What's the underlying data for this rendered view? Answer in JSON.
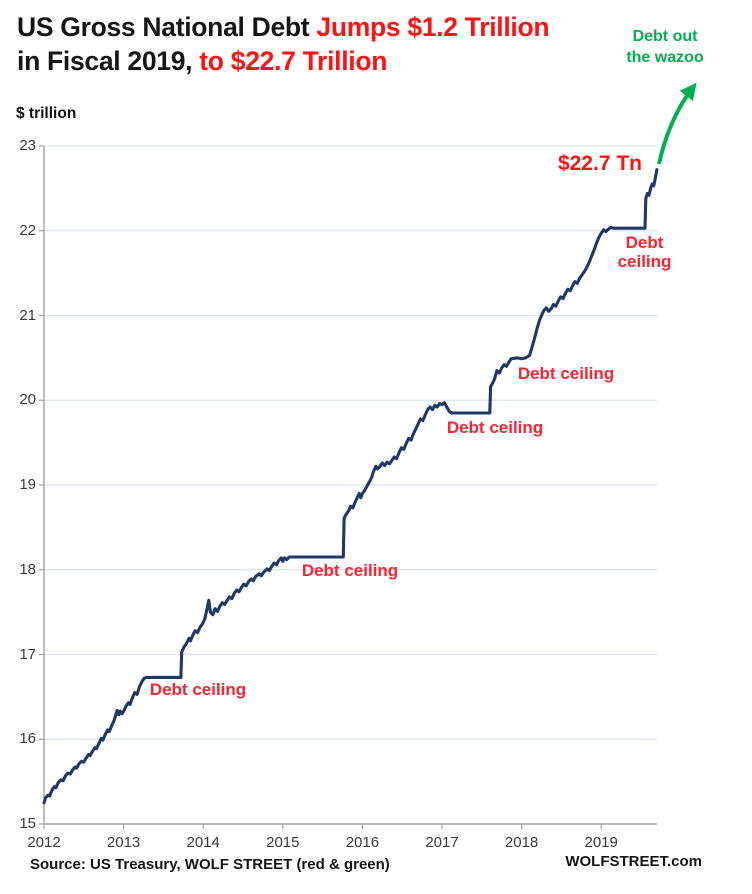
{
  "title": {
    "line1_black": "US Gross National Debt ",
    "line1_red": "Jumps $1.2 Trillion",
    "line2_black": "in Fiscal 2019, ",
    "line2_red": "to $22.7 Trillion"
  },
  "unit_label": "$ trillion",
  "annotations": {
    "wazoo_line1": "Debt out",
    "wazoo_line2": "the wazoo",
    "peak_label": "$22.7 Tn",
    "debt_ceiling_2013": "Debt ceiling",
    "debt_ceiling_2015": "Debt ceiling",
    "debt_ceiling_2017": "Debt ceiling",
    "debt_ceiling_2018": "Debt ceiling",
    "debt_ceiling_2019_line1": "Debt",
    "debt_ceiling_2019_line2": "ceiling"
  },
  "source": {
    "left": "Source: US Treasury, WOLF STREET (red & green)",
    "right": "WOLFSTREET.com"
  },
  "colors": {
    "line": "#1f3864",
    "grid": "#d9e2f2",
    "axis": "#a3a3a3",
    "red": "#ff2230",
    "title_red": "#ff1212",
    "green": "#00b050"
  },
  "chart_data": {
    "type": "line",
    "title": "US Gross National Debt Jumps $1.2 Trillion in Fiscal 2019, to $22.7 Trillion",
    "xlabel": "",
    "ylabel": "$ trillion",
    "xlim": [
      2012,
      2019.7
    ],
    "ylim": [
      15,
      23
    ],
    "grid": "horizontal",
    "legend": "none",
    "x_ticks": [
      2012,
      2013,
      2014,
      2015,
      2016,
      2017,
      2018,
      2019
    ],
    "y_ticks": [
      15,
      16,
      17,
      18,
      19,
      20,
      21,
      22,
      23
    ],
    "series": [
      {
        "name": "US gross national debt, $ trillion",
        "points": [
          [
            2012.0,
            15.25
          ],
          [
            2012.02,
            15.31
          ],
          [
            2012.05,
            15.34
          ],
          [
            2012.07,
            15.33
          ],
          [
            2012.1,
            15.4
          ],
          [
            2012.13,
            15.44
          ],
          [
            2012.15,
            15.43
          ],
          [
            2012.18,
            15.49
          ],
          [
            2012.21,
            15.52
          ],
          [
            2012.24,
            15.51
          ],
          [
            2012.27,
            15.57
          ],
          [
            2012.3,
            15.6
          ],
          [
            2012.33,
            15.59
          ],
          [
            2012.36,
            15.64
          ],
          [
            2012.39,
            15.67
          ],
          [
            2012.41,
            15.66
          ],
          [
            2012.44,
            15.71
          ],
          [
            2012.47,
            15.74
          ],
          [
            2012.5,
            15.73
          ],
          [
            2012.53,
            15.78
          ],
          [
            2012.56,
            15.82
          ],
          [
            2012.58,
            15.81
          ],
          [
            2012.61,
            15.86
          ],
          [
            2012.64,
            15.9
          ],
          [
            2012.66,
            15.89
          ],
          [
            2012.69,
            15.95
          ],
          [
            2012.72,
            16.01
          ],
          [
            2012.74,
            15.99
          ],
          [
            2012.77,
            16.06
          ],
          [
            2012.8,
            16.11
          ],
          [
            2012.82,
            16.09
          ],
          [
            2012.85,
            16.16
          ],
          [
            2012.88,
            16.22
          ],
          [
            2012.9,
            16.28
          ],
          [
            2012.92,
            16.34
          ],
          [
            2012.94,
            16.29
          ],
          [
            2012.96,
            16.33
          ],
          [
            2012.98,
            16.3
          ],
          [
            2013.0,
            16.33
          ],
          [
            2013.03,
            16.39
          ],
          [
            2013.06,
            16.43
          ],
          [
            2013.08,
            16.41
          ],
          [
            2013.11,
            16.49
          ],
          [
            2013.14,
            16.55
          ],
          [
            2013.17,
            16.53
          ],
          [
            2013.2,
            16.62
          ],
          [
            2013.23,
            16.68
          ],
          [
            2013.26,
            16.72
          ],
          [
            2013.29,
            16.73
          ],
          [
            2013.72,
            16.73
          ],
          [
            2013.73,
            17.03
          ],
          [
            2013.76,
            17.09
          ],
          [
            2013.79,
            17.13
          ],
          [
            2013.82,
            17.19
          ],
          [
            2013.84,
            17.16
          ],
          [
            2013.87,
            17.23
          ],
          [
            2013.9,
            17.28
          ],
          [
            2013.93,
            17.26
          ],
          [
            2013.96,
            17.32
          ],
          [
            2013.99,
            17.36
          ],
          [
            2014.02,
            17.42
          ],
          [
            2014.05,
            17.55
          ],
          [
            2014.07,
            17.64
          ],
          [
            2014.09,
            17.5
          ],
          [
            2014.12,
            17.47
          ],
          [
            2014.15,
            17.54
          ],
          [
            2014.18,
            17.51
          ],
          [
            2014.21,
            17.57
          ],
          [
            2014.24,
            17.61
          ],
          [
            2014.27,
            17.59
          ],
          [
            2014.3,
            17.64
          ],
          [
            2014.33,
            17.68
          ],
          [
            2014.36,
            17.66
          ],
          [
            2014.39,
            17.72
          ],
          [
            2014.42,
            17.76
          ],
          [
            2014.45,
            17.74
          ],
          [
            2014.48,
            17.79
          ],
          [
            2014.51,
            17.83
          ],
          [
            2014.54,
            17.81
          ],
          [
            2014.57,
            17.86
          ],
          [
            2014.6,
            17.89
          ],
          [
            2014.63,
            17.87
          ],
          [
            2014.66,
            17.92
          ],
          [
            2014.7,
            17.95
          ],
          [
            2014.73,
            17.93
          ],
          [
            2014.76,
            17.97
          ],
          [
            2014.8,
            18.01
          ],
          [
            2014.83,
            17.99
          ],
          [
            2014.86,
            18.04
          ],
          [
            2014.89,
            18.08
          ],
          [
            2014.92,
            18.06
          ],
          [
            2014.95,
            18.11
          ],
          [
            2014.98,
            18.14
          ],
          [
            2015.0,
            18.1
          ],
          [
            2015.02,
            18.14
          ],
          [
            2015.05,
            18.12
          ],
          [
            2015.08,
            18.15
          ],
          [
            2015.76,
            18.15
          ],
          [
            2015.77,
            18.61
          ],
          [
            2015.8,
            18.66
          ],
          [
            2015.83,
            18.7
          ],
          [
            2015.85,
            18.75
          ],
          [
            2015.88,
            18.73
          ],
          [
            2015.91,
            18.8
          ],
          [
            2015.94,
            18.86
          ],
          [
            2015.96,
            18.9
          ],
          [
            2015.98,
            18.85
          ],
          [
            2016.0,
            18.9
          ],
          [
            2016.03,
            18.94
          ],
          [
            2016.06,
            18.99
          ],
          [
            2016.09,
            19.04
          ],
          [
            2016.12,
            19.1
          ],
          [
            2016.14,
            19.16
          ],
          [
            2016.17,
            19.22
          ],
          [
            2016.19,
            19.19
          ],
          [
            2016.22,
            19.22
          ],
          [
            2016.25,
            19.26
          ],
          [
            2016.28,
            19.23
          ],
          [
            2016.31,
            19.27
          ],
          [
            2016.34,
            19.25
          ],
          [
            2016.37,
            19.29
          ],
          [
            2016.4,
            19.33
          ],
          [
            2016.43,
            19.31
          ],
          [
            2016.46,
            19.38
          ],
          [
            2016.49,
            19.44
          ],
          [
            2016.52,
            19.42
          ],
          [
            2016.55,
            19.49
          ],
          [
            2016.58,
            19.55
          ],
          [
            2016.61,
            19.53
          ],
          [
            2016.64,
            19.6
          ],
          [
            2016.67,
            19.66
          ],
          [
            2016.7,
            19.72
          ],
          [
            2016.73,
            19.78
          ],
          [
            2016.76,
            19.76
          ],
          [
            2016.79,
            19.83
          ],
          [
            2016.82,
            19.89
          ],
          [
            2016.85,
            19.92
          ],
          [
            2016.88,
            19.89
          ],
          [
            2016.91,
            19.94
          ],
          [
            2016.94,
            19.92
          ],
          [
            2016.97,
            19.96
          ],
          [
            2017.0,
            19.95
          ],
          [
            2017.03,
            19.97
          ],
          [
            2017.06,
            19.92
          ],
          [
            2017.09,
            19.87
          ],
          [
            2017.12,
            19.85
          ],
          [
            2017.6,
            19.85
          ],
          [
            2017.61,
            20.16
          ],
          [
            2017.64,
            20.21
          ],
          [
            2017.66,
            20.25
          ],
          [
            2017.69,
            20.35
          ],
          [
            2017.72,
            20.32
          ],
          [
            2017.75,
            20.38
          ],
          [
            2017.78,
            20.42
          ],
          [
            2017.81,
            20.4
          ],
          [
            2017.84,
            20.45
          ],
          [
            2017.87,
            20.49
          ],
          [
            2017.95,
            20.5
          ],
          [
            2018.0,
            20.49
          ],
          [
            2018.05,
            20.5
          ],
          [
            2018.1,
            20.53
          ],
          [
            2018.13,
            20.62
          ],
          [
            2018.16,
            20.72
          ],
          [
            2018.19,
            20.83
          ],
          [
            2018.22,
            20.93
          ],
          [
            2018.25,
            21.0
          ],
          [
            2018.28,
            21.06
          ],
          [
            2018.31,
            21.09
          ],
          [
            2018.34,
            21.05
          ],
          [
            2018.37,
            21.08
          ],
          [
            2018.4,
            21.13
          ],
          [
            2018.43,
            21.11
          ],
          [
            2018.46,
            21.17
          ],
          [
            2018.49,
            21.22
          ],
          [
            2018.52,
            21.2
          ],
          [
            2018.55,
            21.26
          ],
          [
            2018.58,
            21.31
          ],
          [
            2018.61,
            21.29
          ],
          [
            2018.64,
            21.35
          ],
          [
            2018.67,
            21.4
          ],
          [
            2018.7,
            21.38
          ],
          [
            2018.73,
            21.44
          ],
          [
            2018.76,
            21.48
          ],
          [
            2018.79,
            21.52
          ],
          [
            2018.82,
            21.57
          ],
          [
            2018.85,
            21.63
          ],
          [
            2018.88,
            21.7
          ],
          [
            2018.91,
            21.77
          ],
          [
            2018.94,
            21.85
          ],
          [
            2018.97,
            21.92
          ],
          [
            2019.0,
            21.97
          ],
          [
            2019.03,
            22.01
          ],
          [
            2019.06,
            21.99
          ],
          [
            2019.09,
            22.02
          ],
          [
            2019.12,
            22.04
          ],
          [
            2019.15,
            22.03
          ],
          [
            2019.55,
            22.03
          ],
          [
            2019.56,
            22.38
          ],
          [
            2019.58,
            22.44
          ],
          [
            2019.6,
            22.42
          ],
          [
            2019.62,
            22.5
          ],
          [
            2019.64,
            22.55
          ],
          [
            2019.66,
            22.53
          ],
          [
            2019.68,
            22.62
          ],
          [
            2019.69,
            22.67
          ],
          [
            2019.7,
            22.72
          ]
        ]
      }
    ],
    "annotation_points": [
      {
        "label": "Debt ceiling",
        "x": 2013.5,
        "y": 16.73
      },
      {
        "label": "Debt ceiling",
        "x": 2015.4,
        "y": 18.15
      },
      {
        "label": "Debt ceiling",
        "x": 2017.35,
        "y": 19.85
      },
      {
        "label": "Debt ceiling",
        "x": 2018.0,
        "y": 20.5
      },
      {
        "label": "Debt ceiling",
        "x": 2019.35,
        "y": 22.03
      },
      {
        "label": "$22.7 Tn",
        "x": 2019.7,
        "y": 22.72
      },
      {
        "label": "Debt out the wazoo",
        "x": 2019.7,
        "y": 22.72
      }
    ]
  }
}
